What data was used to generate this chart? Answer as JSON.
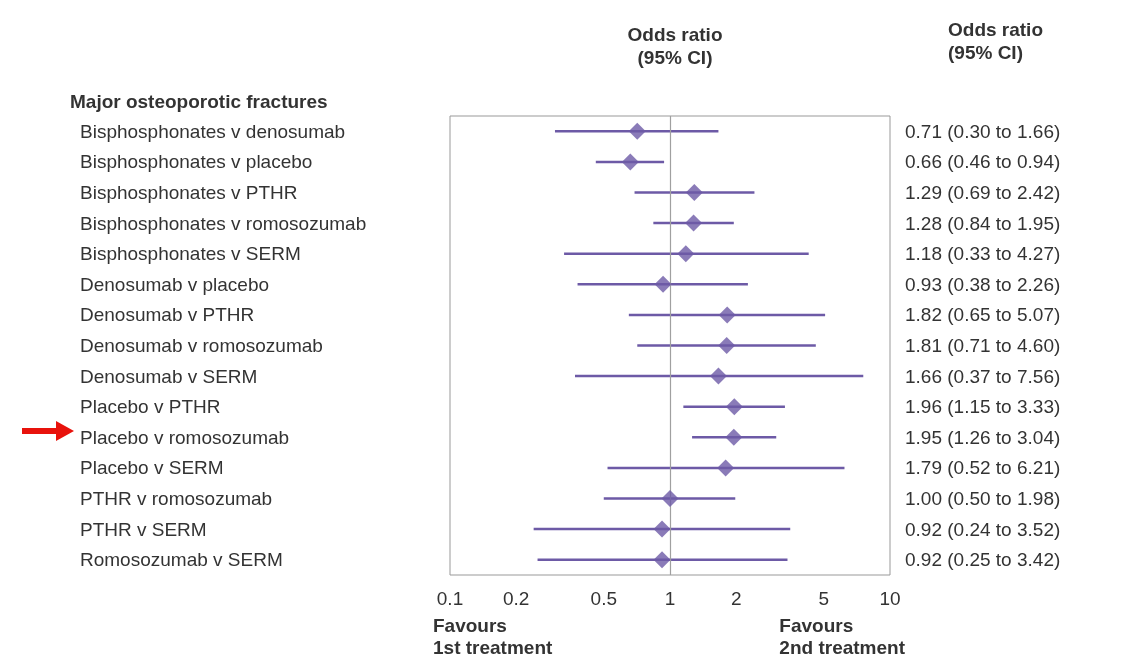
{
  "chart_data": {
    "type": "scatter",
    "orientation": "horizontal",
    "title": "Odds ratio\n(95% CI)",
    "annotations": [
      "Major osteoporotic fractures",
      "Odds ratio\n(95% CI)",
      "Favours\n1st treatment",
      "Favours\n2nd treatment"
    ],
    "categories": [
      "Bisphosphonates v denosumab",
      "Bisphosphonates v placebo",
      "Bisphosphonates v PTHR",
      "Bisphosphonates v romosozumab",
      "Bisphosphonates v SERM",
      "Denosumab v placebo",
      "Denosumab v PTHR",
      "Denosumab v romosozumab",
      "Denosumab v SERM",
      "Placebo v PTHR",
      "Placebo v romosozumab",
      "Placebo v SERM",
      "PTHR v romosozumab",
      "PTHR v SERM",
      "Romosozumab v SERM"
    ],
    "values": [
      0.71,
      0.66,
      1.29,
      1.28,
      1.18,
      0.93,
      1.82,
      1.81,
      1.66,
      1.96,
      1.95,
      1.79,
      1.0,
      0.92,
      0.92
    ],
    "errors": [
      [
        0.3,
        1.66
      ],
      [
        0.46,
        0.94
      ],
      [
        0.69,
        2.42
      ],
      [
        0.84,
        1.95
      ],
      [
        0.33,
        4.27
      ],
      [
        0.38,
        2.26
      ],
      [
        0.65,
        5.07
      ],
      [
        0.71,
        4.6
      ],
      [
        0.37,
        7.56
      ],
      [
        1.15,
        3.33
      ],
      [
        1.26,
        3.04
      ],
      [
        0.52,
        6.21
      ],
      [
        0.5,
        1.98
      ],
      [
        0.24,
        3.52
      ],
      [
        0.25,
        3.42
      ]
    ],
    "value_labels": [
      "0.71 (0.30 to 1.66)",
      "0.66 (0.46 to 0.94)",
      "1.29 (0.69 to 2.42)",
      "1.28 (0.84 to 1.95)",
      "1.18 (0.33 to 4.27)",
      "0.93 (0.38 to 2.26)",
      "1.82 (0.65 to 5.07)",
      "1.81 (0.71 to 4.60)",
      "1.66 (0.37 to 7.56)",
      "1.96 (1.15 to 3.33)",
      "1.95 (1.26 to 3.04)",
      "1.79 (0.52 to 6.21)",
      "1.00 (0.50 to 1.98)",
      "0.92 (0.24 to 3.52)",
      "0.92 (0.25 to 3.42)"
    ],
    "color": "#6d5aa6",
    "log": "x",
    "xlim": [
      0.1,
      10
    ],
    "xticks": [
      0.1,
      0.2,
      0.5,
      1,
      2,
      5,
      10
    ],
    "ref_lines": [
      {
        "axis": "x",
        "value": 1,
        "color": "#a0a0a0"
      }
    ],
    "marker": "diamond",
    "grid": false
  }
}
